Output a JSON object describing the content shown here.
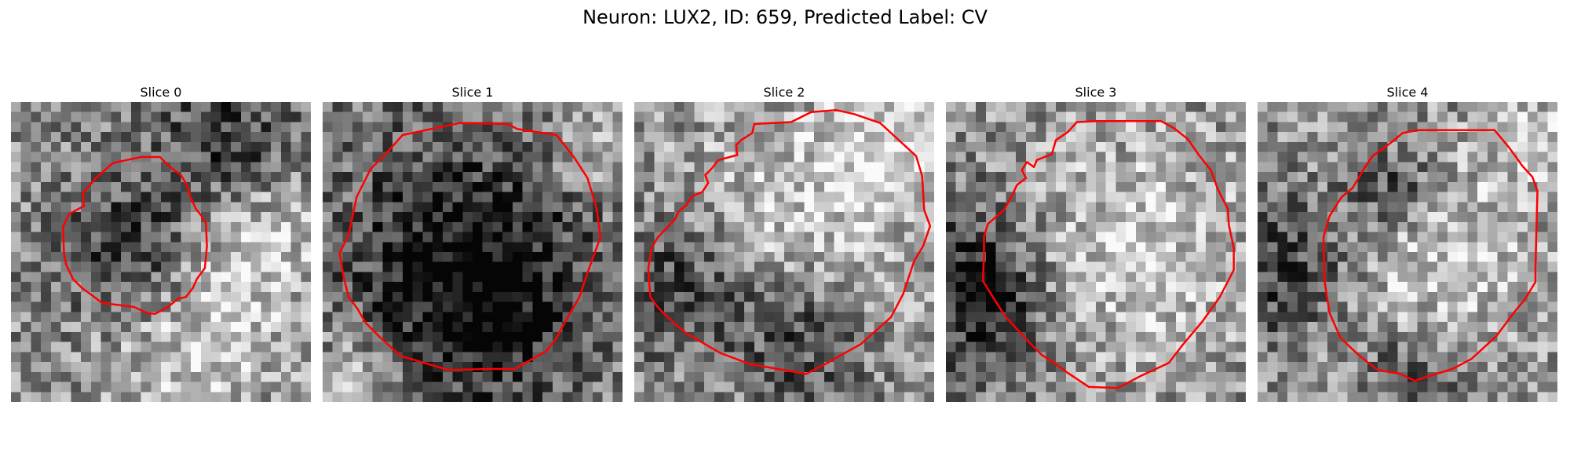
{
  "figure": {
    "title": "Neuron: LUX2, ID: 659, Predicted Label: CV"
  },
  "panels": [
    {
      "title": "Slice 0",
      "contour": [
        [
          13,
          5.5
        ],
        [
          10.2,
          6.1
        ],
        [
          8.5,
          7.6
        ],
        [
          7.2,
          9.1
        ],
        [
          7.3,
          10.4
        ],
        [
          5.8,
          11.2
        ],
        [
          5.2,
          12.5
        ],
        [
          5.3,
          15.1
        ],
        [
          5.5,
          16.2
        ],
        [
          6.2,
          17.7
        ],
        [
          7.1,
          18.6
        ],
        [
          8.2,
          19.4
        ],
        [
          9.1,
          20.1
        ],
        [
          12.3,
          20.5
        ],
        [
          13.6,
          21.1
        ],
        [
          14.4,
          21.2
        ],
        [
          15.7,
          20.5
        ],
        [
          16.7,
          19.7
        ],
        [
          17.5,
          19.5
        ],
        [
          18.2,
          18.6
        ],
        [
          18.6,
          17.7
        ],
        [
          19.4,
          16.6
        ],
        [
          19.6,
          14.4
        ],
        [
          19.5,
          12.1
        ],
        [
          19,
          11.3
        ],
        [
          18.5,
          10.7
        ],
        [
          18,
          9.6
        ],
        [
          17.6,
          8.3
        ],
        [
          17,
          7.3
        ],
        [
          15.9,
          6.5
        ],
        [
          14.9,
          5.5
        ]
      ],
      "dark_blobs": [
        [
          11,
          14,
          5
        ],
        [
          21,
          3,
          5
        ]
      ],
      "light_blobs": [
        [
          24,
          13,
          5
        ],
        [
          18,
          24,
          6
        ]
      ]
    },
    {
      "title": "Slice 1",
      "contour": [
        [
          13.7,
          2.1
        ],
        [
          8,
          3.3
        ],
        [
          6.3,
          5.2
        ],
        [
          4.8,
          6.7
        ],
        [
          3.4,
          9.5
        ],
        [
          2.6,
          13.3
        ],
        [
          1.7,
          15.1
        ],
        [
          2.1,
          17.5
        ],
        [
          2.6,
          19.5
        ],
        [
          3.5,
          20.7
        ],
        [
          4.3,
          22.1
        ],
        [
          5.8,
          23.6
        ],
        [
          7.8,
          25.4
        ],
        [
          12.6,
          26.8
        ],
        [
          16.8,
          26.7
        ],
        [
          19.2,
          26.7
        ],
        [
          22.4,
          24.9
        ],
        [
          23.4,
          23.6
        ],
        [
          24.2,
          22.1
        ],
        [
          25.7,
          19.5
        ],
        [
          26.6,
          16.8
        ],
        [
          27.8,
          13.5
        ],
        [
          27.4,
          10.6
        ],
        [
          26.5,
          7.6
        ],
        [
          25.2,
          5.6
        ],
        [
          23.4,
          3.3
        ],
        [
          19.5,
          2.7
        ],
        [
          18.5,
          2.2
        ]
      ],
      "dark_blobs": [
        [
          14,
          13,
          10
        ],
        [
          15,
          21,
          7
        ]
      ],
      "light_blobs": [
        [
          4,
          27,
          4
        ],
        [
          27,
          4,
          4
        ]
      ]
    },
    {
      "title": "Slice 2",
      "contour": [
        [
          17.7,
          1
        ],
        [
          15.7,
          2
        ],
        [
          12,
          2.2
        ],
        [
          11.8,
          3.1
        ],
        [
          10.7,
          3.8
        ],
        [
          10.2,
          4.3
        ],
        [
          10.3,
          5.3
        ],
        [
          8.4,
          5.8
        ],
        [
          7.8,
          6.6
        ],
        [
          7.1,
          7.3
        ],
        [
          7.4,
          8.1
        ],
        [
          6.8,
          9
        ],
        [
          5.8,
          9.4
        ],
        [
          5.2,
          10.3
        ],
        [
          4.4,
          11
        ],
        [
          4.1,
          11.7
        ],
        [
          2.3,
          13.6
        ],
        [
          1.7,
          14.7
        ],
        [
          1.4,
          16.7
        ],
        [
          1.6,
          19.5
        ],
        [
          2.5,
          20.7
        ],
        [
          4.3,
          22.4
        ],
        [
          5.3,
          23.2
        ],
        [
          8.6,
          25.1
        ],
        [
          11.5,
          26.2
        ],
        [
          17.2,
          27.2
        ],
        [
          19.5,
          26
        ],
        [
          20.9,
          25.2
        ],
        [
          22.7,
          24.2
        ],
        [
          25.7,
          21.5
        ],
        [
          26.9,
          19.2
        ],
        [
          28,
          15.9
        ],
        [
          28.9,
          14.4
        ],
        [
          29.6,
          12.4
        ],
        [
          29,
          10.8
        ],
        [
          28.8,
          7.4
        ],
        [
          28.2,
          5.4
        ],
        [
          25.7,
          3.1
        ],
        [
          24.6,
          2.1
        ],
        [
          22,
          1.2
        ],
        [
          20.2,
          0.8
        ]
      ],
      "dark_blobs": [
        [
          4,
          18,
          5
        ],
        [
          16,
          23,
          5
        ]
      ],
      "light_blobs": [
        [
          16,
          12,
          9
        ],
        [
          24,
          4,
          4
        ]
      ]
    },
    {
      "title": "Slice 3",
      "contour": [
        [
          15.2,
          1.9
        ],
        [
          13.1,
          2
        ],
        [
          12.2,
          3
        ],
        [
          11,
          3.8
        ],
        [
          10.6,
          5.2
        ],
        [
          9.1,
          5.8
        ],
        [
          8.8,
          6.5
        ],
        [
          8.1,
          6
        ],
        [
          7.6,
          6.8
        ],
        [
          8,
          7.6
        ],
        [
          7.1,
          8.3
        ],
        [
          6.6,
          9.4
        ],
        [
          5.8,
          10.8
        ],
        [
          4.2,
          12.2
        ],
        [
          3.8,
          13.5
        ],
        [
          3.8,
          15.6
        ],
        [
          3.7,
          17.9
        ],
        [
          4.7,
          19.5
        ],
        [
          5.9,
          21.4
        ],
        [
          8,
          23.7
        ],
        [
          9.6,
          25.3
        ],
        [
          10.7,
          26
        ],
        [
          12.2,
          27.1
        ],
        [
          14.3,
          28.5
        ],
        [
          17.2,
          28.6
        ],
        [
          19.5,
          27.4
        ],
        [
          22.3,
          26.1
        ],
        [
          23.6,
          24.4
        ],
        [
          25.7,
          21.9
        ],
        [
          27.4,
          19.5
        ],
        [
          28.8,
          16.8
        ],
        [
          28.8,
          14.6
        ],
        [
          28.3,
          12.3
        ],
        [
          28.2,
          10.7
        ],
        [
          27.2,
          8.7
        ],
        [
          26.5,
          6.8
        ],
        [
          25.3,
          5.3
        ],
        [
          24.2,
          3.7
        ],
        [
          22.8,
          2.6
        ],
        [
          21.5,
          1.9
        ]
      ],
      "dark_blobs": [
        [
          2,
          15,
          5
        ],
        [
          4,
          22,
          4
        ]
      ],
      "light_blobs": [
        [
          18,
          14,
          9
        ]
      ]
    },
    {
      "title": "Slice 4",
      "contour": [
        [
          16.1,
          2.8
        ],
        [
          14.5,
          3.1
        ],
        [
          13.3,
          4.1
        ],
        [
          11.5,
          5.4
        ],
        [
          10.7,
          6.6
        ],
        [
          10.1,
          7.6
        ],
        [
          9.5,
          8.6
        ],
        [
          8.4,
          9.5
        ],
        [
          7.2,
          11.4
        ],
        [
          6.6,
          13.5
        ],
        [
          6.7,
          17.9
        ],
        [
          7.2,
          21.1
        ],
        [
          8.3,
          23.6
        ],
        [
          10.1,
          25.3
        ],
        [
          12,
          26.8
        ],
        [
          14.3,
          27.2
        ],
        [
          15.7,
          27.9
        ],
        [
          17.2,
          27.4
        ],
        [
          19.5,
          26.7
        ],
        [
          21.4,
          25.7
        ],
        [
          23.9,
          23.4
        ],
        [
          25.7,
          21
        ],
        [
          26.7,
          19.8
        ],
        [
          27.8,
          18
        ],
        [
          27.8,
          16.6
        ],
        [
          27.9,
          12.6
        ],
        [
          28,
          8.9
        ],
        [
          27.5,
          7.5
        ],
        [
          26.5,
          6.4
        ],
        [
          25.2,
          4.6
        ],
        [
          23.7,
          2.8
        ]
      ],
      "dark_blobs": [
        [
          2,
          16,
          5
        ],
        [
          15,
          27,
          3
        ],
        [
          13,
          8,
          3
        ]
      ],
      "light_blobs": [
        [
          18,
          15,
          8
        ],
        [
          27,
          3,
          3
        ]
      ]
    }
  ]
}
